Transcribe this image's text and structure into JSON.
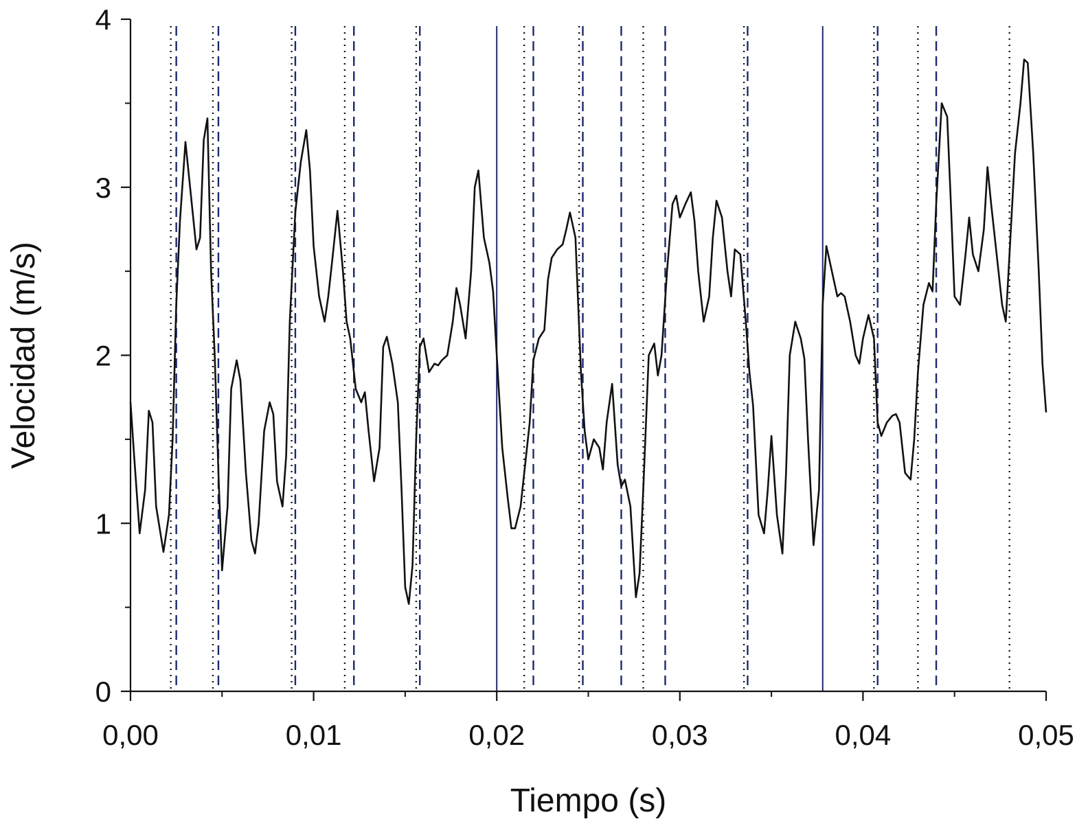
{
  "chart_data": {
    "type": "line",
    "xlabel": "Tiempo (s)",
    "ylabel": "Velocidad (m/s)",
    "xlim": [
      0,
      0.05
    ],
    "ylim": [
      0,
      4
    ],
    "x_ticks": [
      0,
      0.01,
      0.02,
      0.03,
      0.04,
      0.05
    ],
    "x_tick_labels": [
      "0,00",
      "0,01",
      "0,02",
      "0,03",
      "0,04",
      "0,05"
    ],
    "x_minor_ticks": [
      0.005,
      0.015,
      0.025,
      0.035,
      0.045
    ],
    "y_ticks": [
      0,
      1,
      2,
      3,
      4
    ],
    "y_tick_labels": [
      "0",
      "1",
      "2",
      "3",
      "4"
    ],
    "y_minor_ticks": [
      0.5,
      1.5,
      2.5,
      3.5
    ],
    "grid": false,
    "legend": "none",
    "series": [
      {
        "color": "#111111",
        "x": [
          0.0,
          0.0002,
          0.0005,
          0.0008,
          0.001,
          0.0012,
          0.0014,
          0.0018,
          0.0021,
          0.0023,
          0.0025,
          0.0027,
          0.003,
          0.0033,
          0.0036,
          0.0038,
          0.004,
          0.0042,
          0.0044,
          0.0046,
          0.0048,
          0.005,
          0.0053,
          0.0055,
          0.0058,
          0.006,
          0.0063,
          0.0066,
          0.0068,
          0.007,
          0.0073,
          0.0076,
          0.0078,
          0.008,
          0.0083,
          0.0085,
          0.0087,
          0.009,
          0.0093,
          0.0096,
          0.0098,
          0.01,
          0.0103,
          0.0106,
          0.0108,
          0.011,
          0.0113,
          0.0116,
          0.0118,
          0.012,
          0.0123,
          0.0126,
          0.0128,
          0.013,
          0.0133,
          0.0136,
          0.0138,
          0.014,
          0.0143,
          0.0146,
          0.0148,
          0.015,
          0.0152,
          0.0154,
          0.0156,
          0.0158,
          0.016,
          0.0163,
          0.0166,
          0.0168,
          0.017,
          0.0173,
          0.0176,
          0.0178,
          0.018,
          0.0183,
          0.0186,
          0.0188,
          0.019,
          0.0193,
          0.0196,
          0.0198,
          0.02,
          0.0203,
          0.0206,
          0.0208,
          0.021,
          0.0213,
          0.0216,
          0.0218,
          0.022,
          0.0223,
          0.0226,
          0.0228,
          0.023,
          0.0233,
          0.0236,
          0.0238,
          0.024,
          0.0243,
          0.0246,
          0.0248,
          0.025,
          0.0253,
          0.0256,
          0.0258,
          0.026,
          0.0263,
          0.0266,
          0.0268,
          0.027,
          0.0273,
          0.0276,
          0.0278,
          0.028,
          0.0283,
          0.0286,
          0.0288,
          0.029,
          0.0293,
          0.0296,
          0.0298,
          0.03,
          0.0303,
          0.0306,
          0.0308,
          0.031,
          0.0313,
          0.0316,
          0.0318,
          0.032,
          0.0323,
          0.0326,
          0.0328,
          0.033,
          0.0333,
          0.0336,
          0.0338,
          0.034,
          0.0343,
          0.0346,
          0.0348,
          0.035,
          0.0353,
          0.0356,
          0.0358,
          0.036,
          0.0363,
          0.0366,
          0.0368,
          0.037,
          0.0373,
          0.0376,
          0.0378,
          0.038,
          0.0383,
          0.0386,
          0.0388,
          0.039,
          0.0393,
          0.0396,
          0.0398,
          0.04,
          0.0403,
          0.0406,
          0.0408,
          0.041,
          0.0413,
          0.0416,
          0.0418,
          0.042,
          0.0423,
          0.0426,
          0.0428,
          0.043,
          0.0433,
          0.0436,
          0.0438,
          0.044,
          0.0443,
          0.0446,
          0.0448,
          0.045,
          0.0453,
          0.0456,
          0.0458,
          0.046,
          0.0463,
          0.0466,
          0.0468,
          0.047,
          0.0473,
          0.0476,
          0.0478,
          0.048,
          0.0483,
          0.0486,
          0.0488,
          0.049,
          0.0493,
          0.0496,
          0.0498,
          0.05
        ],
        "y": [
          1.72,
          1.4,
          0.94,
          1.2,
          1.67,
          1.6,
          1.1,
          0.83,
          1.05,
          1.5,
          2.3,
          2.8,
          3.27,
          2.95,
          2.63,
          2.7,
          3.28,
          3.41,
          2.5,
          2.0,
          1.3,
          0.72,
          1.1,
          1.8,
          1.97,
          1.85,
          1.3,
          0.9,
          0.82,
          1.0,
          1.55,
          1.72,
          1.65,
          1.25,
          1.1,
          1.4,
          2.2,
          2.85,
          3.15,
          3.34,
          3.1,
          2.65,
          2.35,
          2.2,
          2.35,
          2.55,
          2.86,
          2.5,
          2.2,
          2.1,
          1.8,
          1.72,
          1.78,
          1.55,
          1.25,
          1.45,
          2.05,
          2.11,
          1.95,
          1.72,
          1.2,
          0.62,
          0.52,
          0.75,
          1.5,
          2.05,
          2.1,
          1.9,
          1.95,
          1.94,
          1.97,
          2.0,
          2.2,
          2.4,
          2.3,
          2.1,
          2.5,
          3.0,
          3.1,
          2.7,
          2.55,
          2.38,
          2.0,
          1.45,
          1.15,
          0.97,
          0.97,
          1.1,
          1.4,
          1.6,
          1.97,
          2.1,
          2.15,
          2.45,
          2.58,
          2.63,
          2.66,
          2.75,
          2.85,
          2.7,
          1.9,
          1.55,
          1.38,
          1.5,
          1.45,
          1.32,
          1.6,
          1.83,
          1.35,
          1.22,
          1.26,
          1.1,
          0.56,
          0.7,
          1.2,
          2.0,
          2.07,
          1.88,
          2.0,
          2.5,
          2.9,
          2.95,
          2.82,
          2.9,
          2.97,
          2.8,
          2.5,
          2.2,
          2.35,
          2.7,
          2.92,
          2.82,
          2.5,
          2.35,
          2.63,
          2.6,
          2.2,
          1.9,
          1.7,
          1.05,
          0.94,
          1.2,
          1.52,
          1.05,
          0.82,
          1.3,
          2.0,
          2.2,
          2.1,
          1.98,
          1.5,
          0.87,
          1.2,
          2.3,
          2.65,
          2.5,
          2.35,
          2.37,
          2.35,
          2.2,
          2.0,
          1.95,
          2.1,
          2.24,
          2.1,
          1.6,
          1.52,
          1.6,
          1.64,
          1.65,
          1.6,
          1.3,
          1.26,
          1.5,
          1.9,
          2.3,
          2.43,
          2.38,
          2.9,
          3.5,
          3.42,
          2.9,
          2.35,
          2.3,
          2.6,
          2.82,
          2.6,
          2.5,
          2.75,
          3.12,
          2.9,
          2.6,
          2.3,
          2.2,
          2.6,
          3.2,
          3.5,
          3.76,
          3.74,
          3.2,
          2.5,
          1.95,
          1.66
        ]
      }
    ],
    "vertical_lines": [
      {
        "x": 0.0022,
        "style": "dotted",
        "color": "#111111"
      },
      {
        "x": 0.0025,
        "style": "dashed",
        "color": "#1a2a6c"
      },
      {
        "x": 0.0045,
        "style": "dotted",
        "color": "#111111"
      },
      {
        "x": 0.0048,
        "style": "dashed",
        "color": "#1a2a6c"
      },
      {
        "x": 0.0088,
        "style": "dotted",
        "color": "#111111"
      },
      {
        "x": 0.009,
        "style": "dashed",
        "color": "#1a2a6c"
      },
      {
        "x": 0.0117,
        "style": "dotted",
        "color": "#111111"
      },
      {
        "x": 0.0122,
        "style": "dashed",
        "color": "#1a2a6c"
      },
      {
        "x": 0.0156,
        "style": "dotted",
        "color": "#111111"
      },
      {
        "x": 0.0158,
        "style": "dashed",
        "color": "#1a2a6c"
      },
      {
        "x": 0.02,
        "style": "solid",
        "color": "#1a2a6c"
      },
      {
        "x": 0.0215,
        "style": "dotted",
        "color": "#111111"
      },
      {
        "x": 0.022,
        "style": "dashed",
        "color": "#1a2a6c"
      },
      {
        "x": 0.0245,
        "style": "dotted",
        "color": "#111111"
      },
      {
        "x": 0.0247,
        "style": "dashed",
        "color": "#1a2a6c"
      },
      {
        "x": 0.0268,
        "style": "dashed",
        "color": "#1a2a6c"
      },
      {
        "x": 0.028,
        "style": "dotted",
        "color": "#111111"
      },
      {
        "x": 0.0292,
        "style": "dashed",
        "color": "#1a2a6c"
      },
      {
        "x": 0.0335,
        "style": "dotted",
        "color": "#111111"
      },
      {
        "x": 0.0337,
        "style": "dashed",
        "color": "#1a2a6c"
      },
      {
        "x": 0.0378,
        "style": "solid",
        "color": "#1a2a6c"
      },
      {
        "x": 0.0406,
        "style": "dotted",
        "color": "#111111"
      },
      {
        "x": 0.0408,
        "style": "dashed",
        "color": "#1a2a6c"
      },
      {
        "x": 0.043,
        "style": "dotted",
        "color": "#111111"
      },
      {
        "x": 0.044,
        "style": "dashed",
        "color": "#1a2a6c"
      },
      {
        "x": 0.048,
        "style": "dotted",
        "color": "#111111"
      }
    ]
  }
}
